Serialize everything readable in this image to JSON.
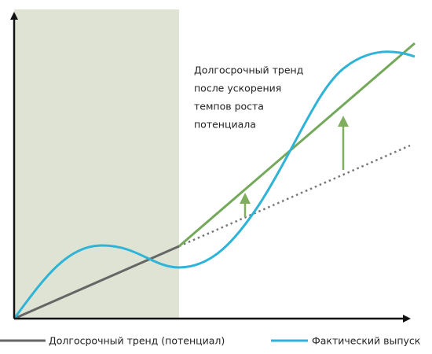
{
  "annotation": {
    "lines": [
      "Долгосрочный тренд",
      "после ускорения",
      "темпов роста",
      "потенциала"
    ]
  },
  "legend": {
    "items": [
      "Долгосрочный тренд (потенциал)",
      "Фактический выпуск"
    ]
  }
}
